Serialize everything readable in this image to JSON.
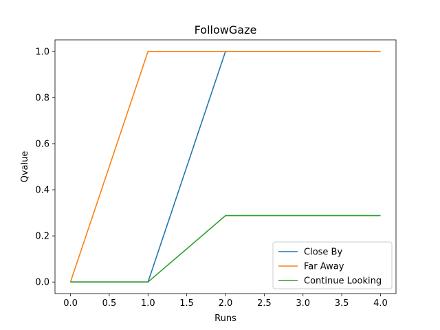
{
  "chart_data": {
    "type": "line",
    "title": "FollowGaze",
    "xlabel": "Runs",
    "ylabel": "Qvalue",
    "xlim": [
      -0.2,
      4.2
    ],
    "ylim": [
      -0.05,
      1.05
    ],
    "xticks": [
      "0.0",
      "0.5",
      "1.0",
      "1.5",
      "2.0",
      "2.5",
      "3.0",
      "3.5",
      "4.0"
    ],
    "yticks": [
      "0.0",
      "0.2",
      "0.4",
      "0.6",
      "0.8",
      "1.0"
    ],
    "grid": false,
    "legend_position": "lower-right",
    "x": [
      0,
      1,
      2,
      3,
      4
    ],
    "series": [
      {
        "name": "Close By",
        "color": "#1f77b4",
        "values": [
          0,
          0,
          1,
          1,
          1
        ]
      },
      {
        "name": "Far Away",
        "color": "#ff7f0e",
        "values": [
          0,
          1,
          1,
          1,
          1
        ]
      },
      {
        "name": "Continue Looking",
        "color": "#2ca02c",
        "values": [
          0,
          0,
          0.288,
          0.288,
          0.288
        ]
      }
    ]
  }
}
